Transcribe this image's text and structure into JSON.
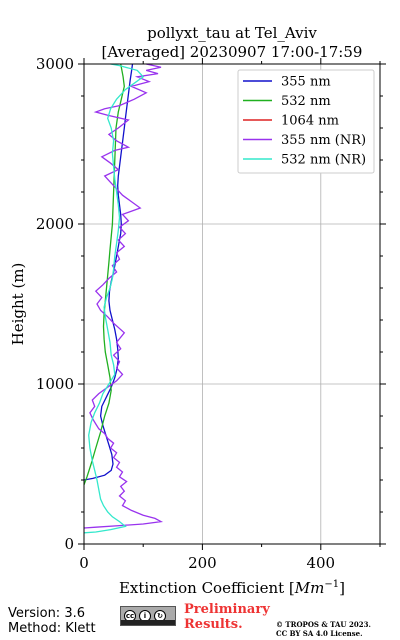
{
  "chart_data": {
    "type": "line",
    "title_line1": "pollyxt_tau at Tel_Aviv",
    "title_line2": "[Averaged] 20230907 17:00-17:59",
    "xlabel_prefix": "Extinction Coefficient [",
    "xlabel_unit": "Mm",
    "xlabel_exp": "−1",
    "xlabel_suffix": "]",
    "ylabel": "Height (m)",
    "xlim": [
      0,
      500
    ],
    "ylim": [
      0,
      3000
    ],
    "xticks": [
      0,
      200,
      400
    ],
    "yticks": [
      0,
      1000,
      2000,
      3000
    ],
    "grid": true,
    "legend_position": "top-right",
    "series": [
      {
        "name": "355 nm",
        "color": "#1010cc",
        "points": [
          [
            0,
            400
          ],
          [
            15,
            410
          ],
          [
            35,
            430
          ],
          [
            46,
            460
          ],
          [
            49,
            500
          ],
          [
            47,
            560
          ],
          [
            42,
            620
          ],
          [
            37,
            680
          ],
          [
            32,
            740
          ],
          [
            28,
            800
          ],
          [
            30,
            860
          ],
          [
            38,
            920
          ],
          [
            46,
            980
          ],
          [
            52,
            1040
          ],
          [
            56,
            1100
          ],
          [
            58,
            1160
          ],
          [
            57,
            1220
          ],
          [
            55,
            1280
          ],
          [
            52,
            1340
          ],
          [
            48,
            1400
          ],
          [
            44,
            1460
          ],
          [
            42,
            1520
          ],
          [
            43,
            1580
          ],
          [
            46,
            1640
          ],
          [
            50,
            1700
          ],
          [
            53,
            1760
          ],
          [
            56,
            1820
          ],
          [
            59,
            1880
          ],
          [
            62,
            1940
          ],
          [
            63,
            2000
          ],
          [
            62,
            2060
          ],
          [
            60,
            2120
          ],
          [
            58,
            2180
          ],
          [
            57,
            2240
          ],
          [
            58,
            2300
          ],
          [
            60,
            2360
          ],
          [
            62,
            2420
          ],
          [
            64,
            2480
          ],
          [
            66,
            2540
          ],
          [
            68,
            2600
          ],
          [
            70,
            2660
          ],
          [
            72,
            2720
          ],
          [
            74,
            2780
          ],
          [
            76,
            2840
          ],
          [
            78,
            2900
          ],
          [
            80,
            2950
          ],
          [
            82,
            3000
          ]
        ]
      },
      {
        "name": "532 nm",
        "color": "#20b020",
        "points": [
          [
            0,
            370
          ],
          [
            5,
            420
          ],
          [
            12,
            500
          ],
          [
            20,
            600
          ],
          [
            28,
            700
          ],
          [
            35,
            800
          ],
          [
            42,
            880
          ],
          [
            46,
            960
          ],
          [
            44,
            1040
          ],
          [
            40,
            1120
          ],
          [
            36,
            1200
          ],
          [
            34,
            1280
          ],
          [
            33,
            1360
          ],
          [
            34,
            1440
          ],
          [
            36,
            1520
          ],
          [
            38,
            1600
          ],
          [
            40,
            1680
          ],
          [
            42,
            1760
          ],
          [
            44,
            1840
          ],
          [
            46,
            1920
          ],
          [
            48,
            2000
          ],
          [
            49,
            2100
          ],
          [
            50,
            2200
          ],
          [
            51,
            2300
          ],
          [
            52,
            2400
          ],
          [
            53,
            2500
          ],
          [
            54,
            2600
          ],
          [
            58,
            2700
          ],
          [
            63,
            2780
          ],
          [
            68,
            2860
          ],
          [
            66,
            2920
          ],
          [
            62,
            3000
          ]
        ]
      },
      {
        "name": "1064 nm",
        "color": "#dd2222",
        "points": []
      },
      {
        "name": "355 nm (NR)",
        "color": "#9933ee",
        "points": [
          [
            0,
            100
          ],
          [
            20,
            105
          ],
          [
            60,
            115
          ],
          [
            100,
            125
          ],
          [
            130,
            140
          ],
          [
            120,
            160
          ],
          [
            100,
            180
          ],
          [
            80,
            210
          ],
          [
            65,
            240
          ],
          [
            70,
            270
          ],
          [
            60,
            300
          ],
          [
            68,
            330
          ],
          [
            62,
            360
          ],
          [
            72,
            390
          ],
          [
            60,
            420
          ],
          [
            65,
            450
          ],
          [
            55,
            480
          ],
          [
            60,
            510
          ],
          [
            50,
            540
          ],
          [
            55,
            570
          ],
          [
            45,
            600
          ],
          [
            50,
            630
          ],
          [
            40,
            660
          ],
          [
            35,
            690
          ],
          [
            25,
            720
          ],
          [
            20,
            750
          ],
          [
            15,
            780
          ],
          [
            10,
            820
          ],
          [
            18,
            860
          ],
          [
            14,
            900
          ],
          [
            25,
            940
          ],
          [
            40,
            980
          ],
          [
            55,
            1020
          ],
          [
            65,
            1060
          ],
          [
            55,
            1100
          ],
          [
            60,
            1140
          ],
          [
            50,
            1180
          ],
          [
            62,
            1220
          ],
          [
            55,
            1260
          ],
          [
            68,
            1320
          ],
          [
            50,
            1380
          ],
          [
            40,
            1420
          ],
          [
            28,
            1460
          ],
          [
            22,
            1500
          ],
          [
            30,
            1540
          ],
          [
            20,
            1580
          ],
          [
            32,
            1620
          ],
          [
            42,
            1660
          ],
          [
            55,
            1700
          ],
          [
            48,
            1740
          ],
          [
            60,
            1780
          ],
          [
            55,
            1820
          ],
          [
            68,
            1860
          ],
          [
            58,
            1900
          ],
          [
            70,
            1940
          ],
          [
            60,
            1980
          ],
          [
            75,
            2020
          ],
          [
            65,
            2060
          ],
          [
            95,
            2100
          ],
          [
            80,
            2140
          ],
          [
            65,
            2180
          ],
          [
            55,
            2220
          ],
          [
            45,
            2260
          ],
          [
            35,
            2300
          ],
          [
            58,
            2340
          ],
          [
            45,
            2380
          ],
          [
            30,
            2420
          ],
          [
            52,
            2460
          ],
          [
            75,
            2480
          ],
          [
            55,
            2520
          ],
          [
            42,
            2560
          ],
          [
            58,
            2600
          ],
          [
            75,
            2650
          ],
          [
            40,
            2680
          ],
          [
            20,
            2700
          ],
          [
            35,
            2720
          ],
          [
            60,
            2740
          ],
          [
            85,
            2780
          ],
          [
            105,
            2820
          ],
          [
            80,
            2860
          ],
          [
            110,
            2890
          ],
          [
            90,
            2920
          ],
          [
            125,
            2940
          ],
          [
            105,
            2960
          ],
          [
            130,
            2980
          ],
          [
            105,
            3000
          ]
        ]
      },
      {
        "name": "532 nm (NR)",
        "color": "#33e8cc",
        "points": [
          [
            0,
            70
          ],
          [
            20,
            75
          ],
          [
            45,
            90
          ],
          [
            70,
            110
          ],
          [
            60,
            140
          ],
          [
            48,
            170
          ],
          [
            40,
            200
          ],
          [
            33,
            240
          ],
          [
            28,
            280
          ],
          [
            25,
            340
          ],
          [
            22,
            400
          ],
          [
            18,
            460
          ],
          [
            14,
            520
          ],
          [
            10,
            600
          ],
          [
            8,
            680
          ],
          [
            12,
            760
          ],
          [
            18,
            820
          ],
          [
            26,
            880
          ],
          [
            32,
            940
          ],
          [
            42,
            1000
          ],
          [
            52,
            1060
          ],
          [
            50,
            1120
          ],
          [
            46,
            1180
          ],
          [
            44,
            1260
          ],
          [
            40,
            1340
          ],
          [
            36,
            1420
          ],
          [
            34,
            1480
          ],
          [
            38,
            1540
          ],
          [
            44,
            1600
          ],
          [
            48,
            1660
          ],
          [
            50,
            1720
          ],
          [
            52,
            1800
          ],
          [
            55,
            1880
          ],
          [
            58,
            1960
          ],
          [
            60,
            2040
          ],
          [
            58,
            2120
          ],
          [
            55,
            2200
          ],
          [
            52,
            2280
          ],
          [
            50,
            2360
          ],
          [
            48,
            2440
          ],
          [
            50,
            2520
          ],
          [
            46,
            2600
          ],
          [
            40,
            2660
          ],
          [
            45,
            2720
          ],
          [
            55,
            2780
          ],
          [
            70,
            2840
          ],
          [
            85,
            2880
          ],
          [
            100,
            2920
          ],
          [
            90,
            2960
          ],
          [
            60,
            2990
          ],
          [
            45,
            3000
          ]
        ]
      }
    ]
  },
  "footer": {
    "version": "Version: 3.6",
    "method": "Method: Klett",
    "preliminary_line1": "Preliminary",
    "preliminary_line2": "Results.",
    "copyright_line1": "© TROPOS & TAU 2023.",
    "copyright_line2": "CC BY SA 4.0 License."
  }
}
